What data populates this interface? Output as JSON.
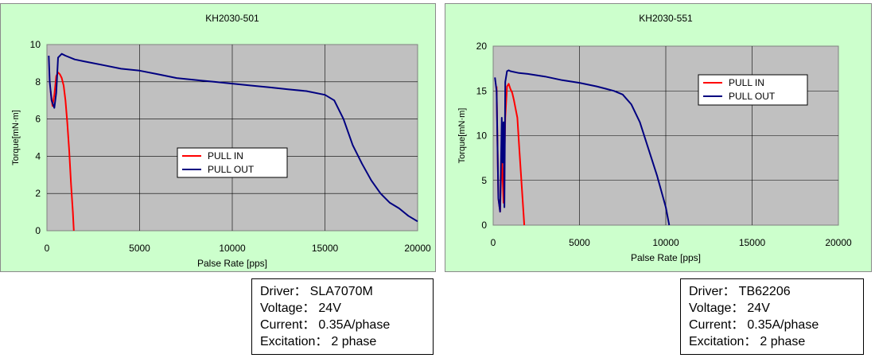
{
  "chart_data": [
    {
      "type": "line",
      "title": "KH2030-501",
      "xlabel": "Palse Rate [pps]",
      "ylabel": "Torque[mN·m]",
      "xlim": [
        0,
        20000
      ],
      "ylim": [
        0,
        10
      ],
      "xticks": [
        "0",
        "5000",
        "10000",
        "15000",
        "20000"
      ],
      "yticks": [
        "0",
        "2",
        "4",
        "6",
        "8",
        "10"
      ],
      "grid": true,
      "legend": "center",
      "series": [
        {
          "name": "PULL IN",
          "color": "#ff0000",
          "x": [
            200,
            300,
            400,
            500,
            600,
            700,
            800,
            900,
            1000,
            1100,
            1200,
            1300,
            1400,
            1450
          ],
          "y": [
            7.5,
            6.7,
            7.3,
            8.3,
            8.5,
            8.4,
            8.2,
            7.8,
            7.0,
            5.8,
            4.3,
            2.5,
            1.0,
            0.0
          ]
        },
        {
          "name": "PULL OUT",
          "color": "#000080",
          "x": [
            100,
            150,
            250,
            400,
            500,
            600,
            800,
            1000,
            1500,
            2000,
            3000,
            4000,
            5000,
            6000,
            7000,
            8000,
            9000,
            10000,
            11000,
            12000,
            13000,
            14000,
            15000,
            15500,
            16000,
            16500,
            17000,
            17500,
            18000,
            18500,
            19000,
            19500,
            20000
          ],
          "y": [
            9.4,
            8.0,
            7.0,
            6.6,
            7.4,
            9.3,
            9.5,
            9.4,
            9.2,
            9.1,
            8.9,
            8.7,
            8.6,
            8.4,
            8.2,
            8.1,
            8.0,
            7.9,
            7.8,
            7.7,
            7.6,
            7.5,
            7.3,
            7.0,
            6.0,
            4.6,
            3.6,
            2.7,
            2.0,
            1.5,
            1.2,
            0.8,
            0.5
          ]
        }
      ]
    },
    {
      "type": "line",
      "title": "KH2030-551",
      "xlabel": "Palse Rate [pps]",
      "ylabel": "Torque[mN·m]",
      "xlim": [
        0,
        20000
      ],
      "ylim": [
        0,
        20
      ],
      "xticks": [
        "0",
        "5000",
        "10000",
        "15000",
        "20000"
      ],
      "yticks": [
        "0",
        "5",
        "10",
        "15",
        "20"
      ],
      "grid": true,
      "legend": "top-right",
      "series": [
        {
          "name": "PULL IN",
          "color": "#ff0000",
          "x": [
            200,
            300,
            400,
            500,
            600,
            700,
            800,
            900,
            1000,
            1100,
            1200,
            1300,
            1400,
            1500,
            1600,
            1700,
            1800
          ],
          "y": [
            15.5,
            3.0,
            1.5,
            8.0,
            2.5,
            12.0,
            15.5,
            15.8,
            15.2,
            14.8,
            14.0,
            13.0,
            12.0,
            9.0,
            6.0,
            3.0,
            0.0
          ]
        },
        {
          "name": "PULL OUT",
          "color": "#000080",
          "x": [
            100,
            200,
            300,
            400,
            500,
            550,
            600,
            650,
            700,
            800,
            900,
            1000,
            1500,
            2000,
            3000,
            4000,
            5000,
            6000,
            7000,
            7500,
            8000,
            8500,
            9000,
            9500,
            10000,
            10200
          ],
          "y": [
            16.5,
            15.0,
            3.0,
            1.5,
            12.0,
            7.0,
            11.5,
            2.0,
            16.0,
            17.2,
            17.3,
            17.2,
            17.0,
            16.9,
            16.6,
            16.2,
            15.9,
            15.5,
            15.0,
            14.6,
            13.5,
            11.5,
            8.5,
            5.5,
            2.0,
            0.0
          ]
        }
      ]
    }
  ],
  "specs": [
    {
      "driver_label": "Driver：",
      "driver": "SLA7070M",
      "voltage_label": "Voltage：",
      "voltage": "24V",
      "current_label": "Current：",
      "current": "0.35A/phase",
      "excitation_label": "Excitation：",
      "excitation": "2 phase"
    },
    {
      "driver_label": "Driver：",
      "driver": "TB62206",
      "voltage_label": "Voltage：",
      "voltage": "24V",
      "current_label": "Current：",
      "current": "0.35A/phase",
      "excitation_label": "Excitation：",
      "excitation": "2 phase"
    }
  ],
  "colors": {
    "panel_bg": "#ccffcc",
    "plot_bg": "#c0c0c0",
    "pull_in": "#ff0000",
    "pull_out": "#000080"
  }
}
